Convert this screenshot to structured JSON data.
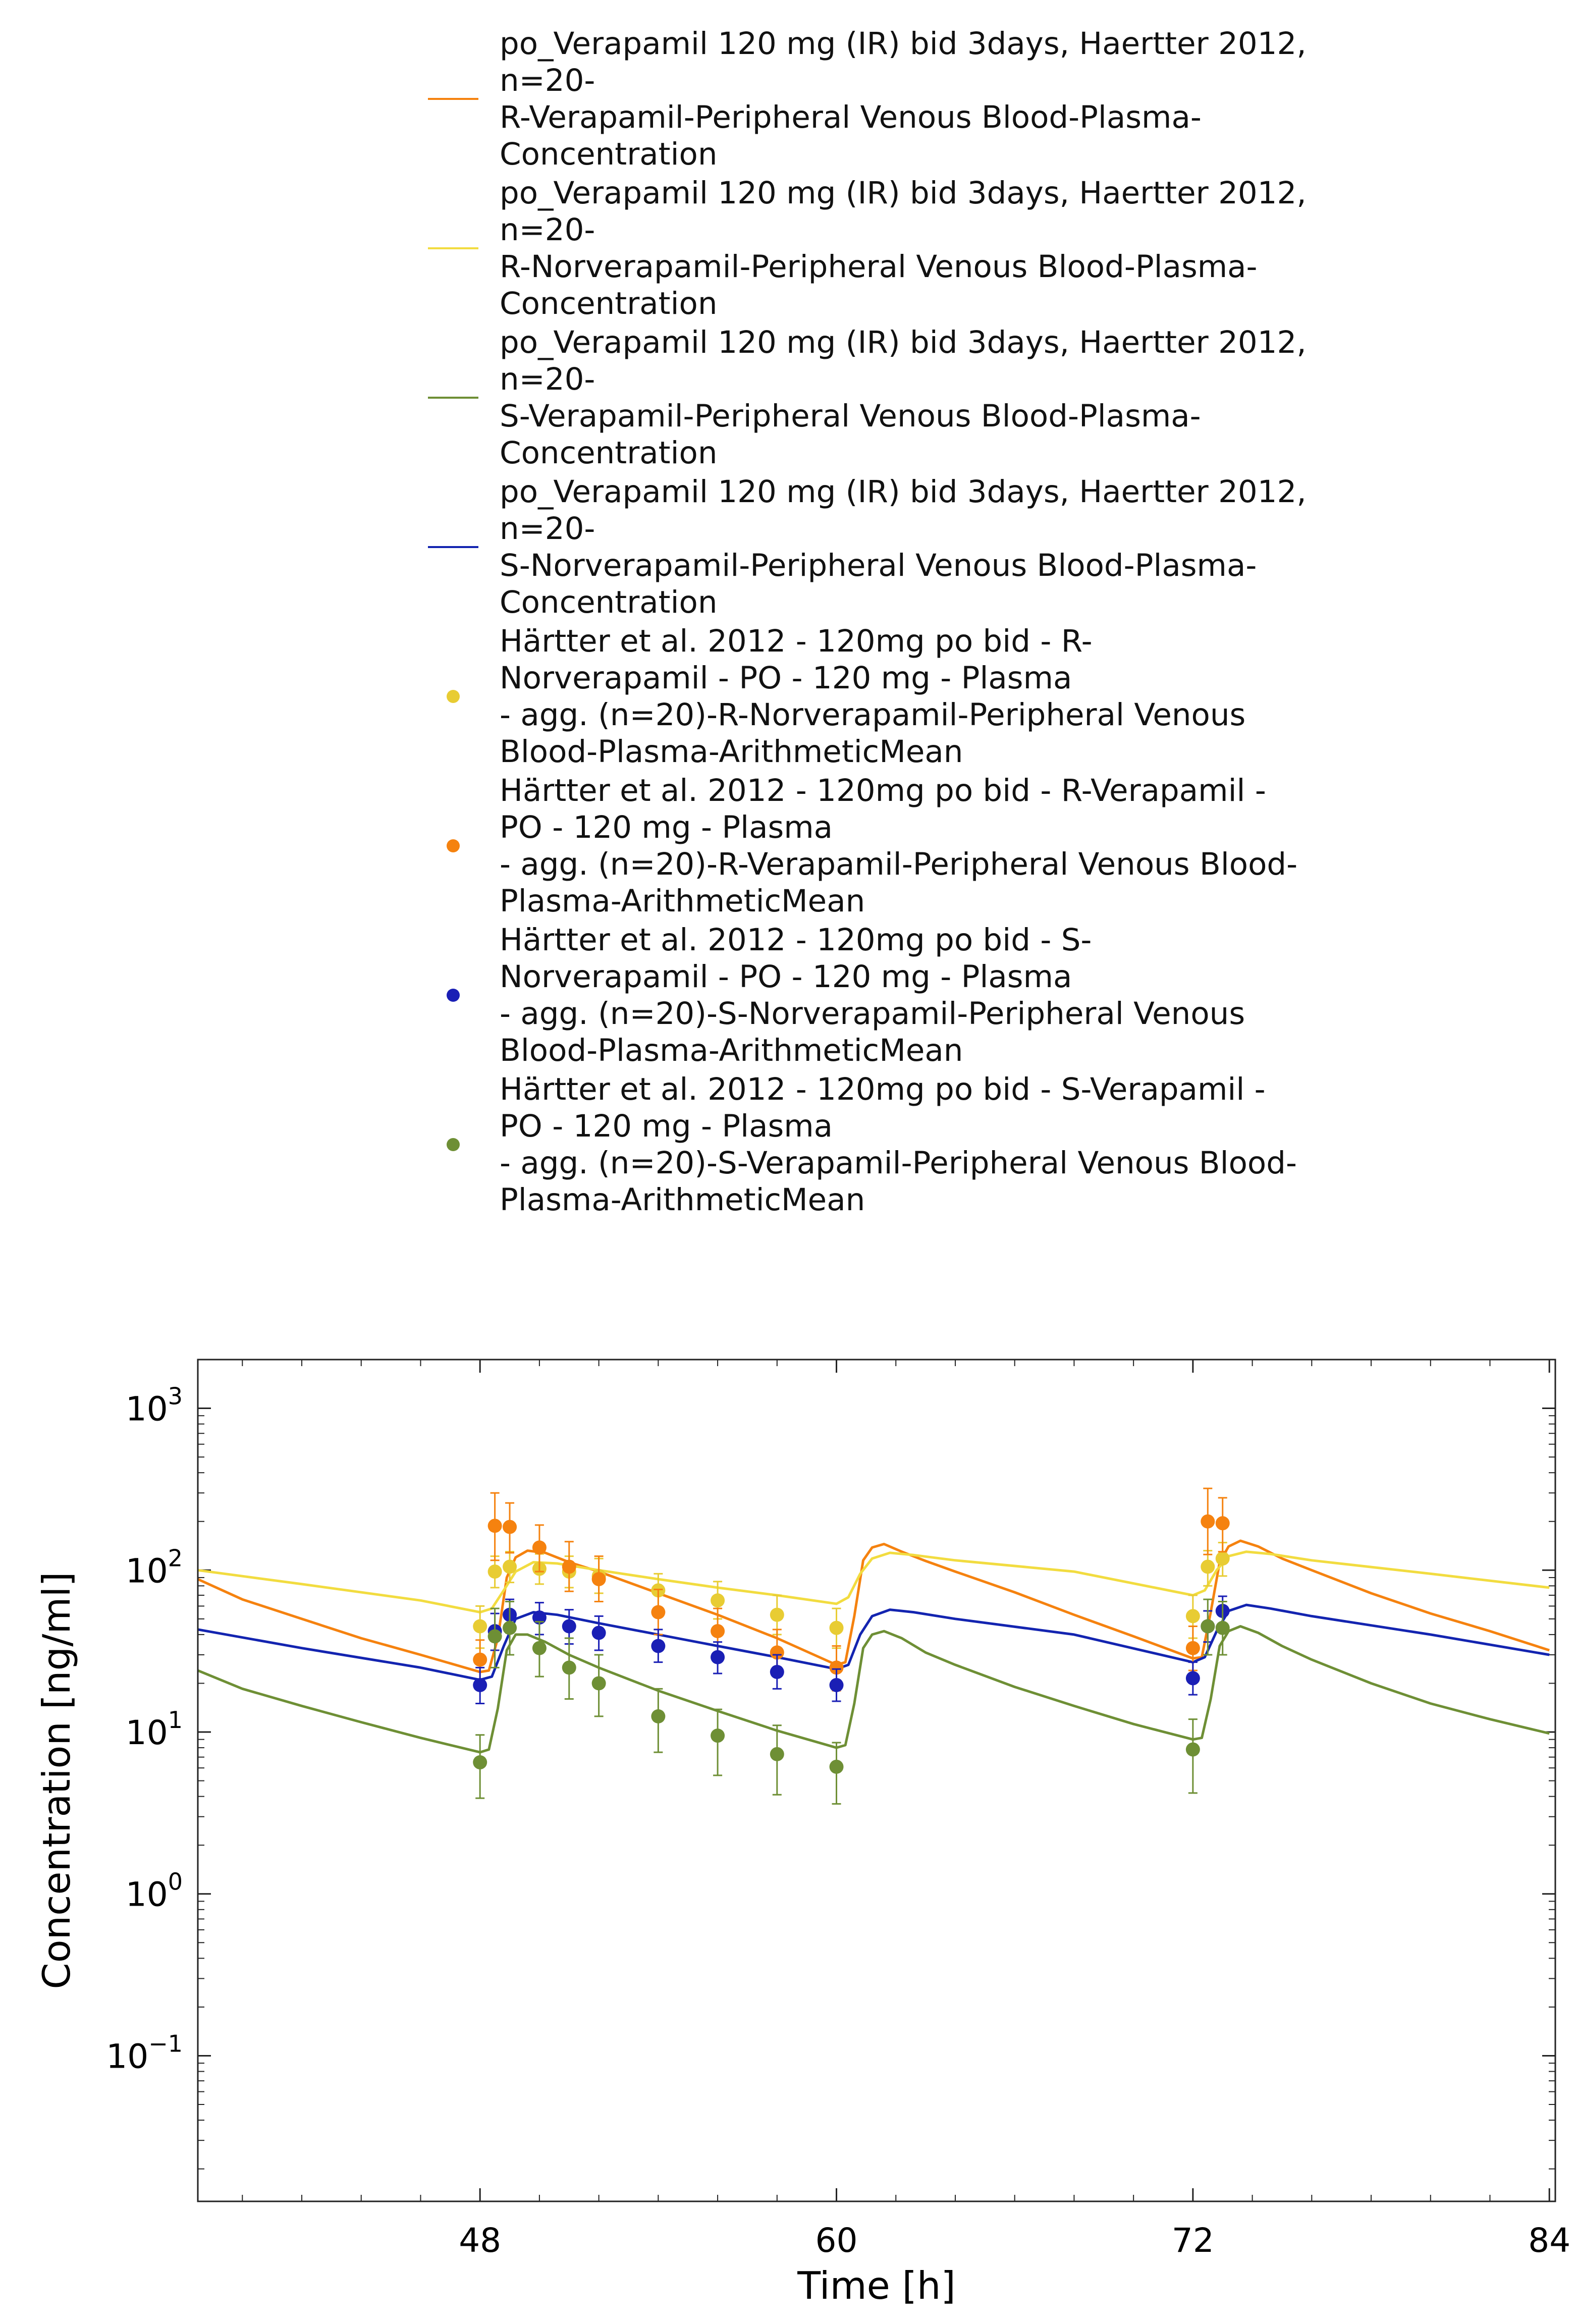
{
  "chart_data": {
    "type": "line",
    "title": "",
    "xlabel": "Time [h]",
    "ylabel": "Concentration [ng/ml]",
    "xlim": [
      38.5,
      84.2
    ],
    "ylim": [
      0.0126,
      2000
    ],
    "yscale": "log",
    "x_ticks": [
      48,
      60,
      72,
      84
    ],
    "x_tick_labels": [
      "48",
      "60",
      "72",
      "84"
    ],
    "y_ticks": [
      0.1,
      1,
      10,
      100,
      1000
    ],
    "y_tick_labels": [
      {
        "base": "10",
        "exp": "−1"
      },
      {
        "base": "10",
        "exp": "0"
      },
      {
        "base": "10",
        "exp": "1"
      },
      {
        "base": "10",
        "exp": "2"
      },
      {
        "base": "10",
        "exp": "3"
      }
    ],
    "grid": false,
    "legend_placement": "above",
    "simulations": [
      {
        "name": "po_Verapamil 120 mg (IR) bid 3days, Haertter 2012,\nn=20-\nR-Verapamil-Peripheral Venous Blood-Plasma-\nConcentration",
        "color": "#f5820f",
        "x": [
          38.5,
          40,
          42,
          44,
          46,
          48,
          48.3,
          48.6,
          48.9,
          49.2,
          49.6,
          50.2,
          51,
          52,
          54,
          56,
          58,
          60,
          60.3,
          60.6,
          60.9,
          61.2,
          61.6,
          62.2,
          63,
          64,
          66,
          68,
          70,
          72,
          72.3,
          72.6,
          72.9,
          73.2,
          73.6,
          74.2,
          75,
          76,
          78,
          80,
          82,
          84
        ],
        "y": [
          88,
          66,
          50,
          38,
          30,
          23.5,
          24,
          38,
          90,
          120,
          132,
          128,
          112,
          98,
          72,
          53,
          38,
          26,
          27,
          52,
          115,
          138,
          145,
          130,
          114,
          98,
          73,
          53,
          39,
          28.5,
          29,
          55,
          112,
          140,
          152,
          140,
          118,
          100,
          72,
          54,
          42,
          32
        ]
      },
      {
        "name": "po_Verapamil 120 mg (IR) bid 3days, Haertter 2012,\nn=20-\nR-Norverapamil-Peripheral Venous Blood-Plasma-\nConcentration",
        "color": "#f2dc40",
        "x": [
          38.5,
          42,
          46,
          48,
          48.4,
          48.8,
          49.2,
          49.8,
          50.6,
          52,
          54,
          56,
          58,
          60,
          60.4,
          60.8,
          61.2,
          61.8,
          62.6,
          64,
          68,
          72,
          72.4,
          72.8,
          73.2,
          73.8,
          74.6,
          76,
          80,
          84
        ],
        "y": [
          100,
          82,
          65,
          55,
          58,
          75,
          98,
          112,
          110,
          100,
          88,
          78,
          70,
          62,
          68,
          95,
          118,
          128,
          124,
          115,
          98,
          70,
          75,
          100,
          122,
          130,
          126,
          115,
          95,
          78
        ]
      },
      {
        "name": "po_Verapamil 120 mg (IR) bid 3days, Haertter 2012,\nn=20-\nS-Verapamil-Peripheral Venous Blood-Plasma-\nConcentration",
        "color": "#6e8f35",
        "x": [
          38.5,
          40,
          42,
          44,
          46,
          48,
          48.3,
          48.6,
          48.9,
          49.2,
          49.6,
          50.2,
          51,
          52,
          54,
          56,
          58,
          60,
          60.3,
          60.6,
          60.9,
          61.2,
          61.6,
          62.2,
          63,
          64,
          66,
          68,
          70,
          72,
          72.3,
          72.6,
          72.9,
          73.2,
          73.6,
          74.2,
          75,
          76,
          78,
          80,
          82,
          84
        ],
        "y": [
          24,
          18.5,
          14.5,
          11.5,
          9.2,
          7.5,
          7.8,
          14,
          32,
          40,
          40,
          36,
          30,
          25,
          18,
          13.5,
          10.2,
          8,
          8.3,
          15,
          33,
          40,
          42,
          38,
          31,
          26,
          19,
          14.5,
          11.2,
          9,
          9.2,
          16,
          34,
          42,
          45,
          41,
          34,
          28,
          20,
          15,
          12,
          9.8
        ]
      },
      {
        "name": "po_Verapamil 120 mg (IR) bid 3days, Haertter 2012,\nn=20-\nS-Norverapamil-Peripheral Venous Blood-Plasma-\nConcentration",
        "color": "#1324b0",
        "x": [
          38.5,
          42,
          46,
          48,
          48.4,
          48.8,
          49.2,
          49.8,
          50.6,
          52,
          54,
          56,
          58,
          60,
          60.4,
          60.8,
          61.2,
          61.8,
          62.6,
          64,
          68,
          72,
          72.4,
          72.8,
          73.2,
          73.8,
          74.6,
          76,
          80,
          84
        ],
        "y": [
          43,
          33,
          25,
          21,
          22,
          34,
          50,
          55,
          53,
          47,
          40,
          34,
          29,
          24.5,
          26,
          40,
          52,
          57,
          55,
          50,
          40,
          27,
          29,
          42,
          56,
          61,
          58,
          52,
          40,
          30
        ]
      }
    ],
    "observations": [
      {
        "name": "Härtter et al. 2012 - 120mg po bid - R-\nNorverapamil - PO - 120 mg - Plasma\n- agg. (n=20)-R-Norverapamil-Peripheral Venous\nBlood-Plasma-ArithmeticMean",
        "color": "#e8cc33",
        "x": [
          48,
          48.5,
          49,
          50,
          51,
          52,
          54,
          56,
          58,
          60,
          72,
          72.5,
          73
        ],
        "y": [
          45,
          98,
          105,
          102,
          98,
          92,
          75,
          65,
          53,
          44,
          52,
          105,
          118
        ],
        "err_low": [
          33,
          78,
          84,
          82,
          78,
          72,
          58,
          50,
          40,
          33,
          38,
          80,
          92
        ],
        "err_high": [
          60,
          122,
          130,
          126,
          122,
          118,
          95,
          85,
          70,
          58,
          70,
          132,
          148
        ]
      },
      {
        "name": "Härtter et al. 2012 - 120mg po bid - R-Verapamil -\nPO - 120 mg - Plasma\n- agg. (n=20)-R-Verapamil-Peripheral Venous Blood-\nPlasma-ArithmeticMean",
        "color": "#f5820f",
        "x": [
          48,
          48.5,
          49,
          50,
          51,
          52,
          54,
          56,
          58,
          60,
          72,
          72.5,
          73
        ],
        "y": [
          28,
          188,
          185,
          138,
          105,
          88,
          55,
          42,
          31,
          25,
          33,
          200,
          195
        ],
        "err_low": [
          20,
          115,
          128,
          98,
          74,
          64,
          40,
          31,
          23,
          18,
          24,
          125,
          130
        ],
        "err_high": [
          37,
          300,
          260,
          190,
          150,
          122,
          76,
          58,
          43,
          34,
          45,
          320,
          280
        ]
      },
      {
        "name": "Härtter et al. 2012 - 120mg po bid - S-\nNorverapamil - PO - 120 mg - Plasma\n- agg. (n=20)-S-Norverapamil-Peripheral Venous\nBlood-Plasma-ArithmeticMean",
        "color": "#1a1fb5",
        "x": [
          48,
          48.5,
          49,
          50,
          51,
          52,
          54,
          56,
          58,
          60,
          72,
          72.5,
          73
        ],
        "y": [
          19.5,
          42,
          53,
          51,
          45,
          41,
          34,
          29,
          23.5,
          19.5,
          21.5,
          45,
          56
        ],
        "err_low": [
          15,
          32,
          41,
          40,
          35,
          32,
          27,
          23,
          18.5,
          15.5,
          17,
          36,
          45
        ],
        "err_high": [
          25,
          54,
          66,
          63,
          57,
          52,
          43,
          36,
          30,
          24.5,
          27,
          56,
          69
        ]
      },
      {
        "name": "Härtter et al. 2012 - 120mg po bid - S-Verapamil -\nPO - 120 mg - Plasma\n- agg. (n=20)-S-Verapamil-Peripheral Venous Blood-\nPlasma-ArithmeticMean",
        "color": "#6e8f35",
        "x": [
          48,
          48.5,
          49,
          50,
          51,
          52,
          54,
          56,
          58,
          60,
          72,
          72.5,
          73
        ],
        "y": [
          6.5,
          39,
          44,
          33,
          25,
          20,
          12.5,
          9.5,
          7.3,
          6.1,
          7.8,
          45,
          44
        ],
        "err_low": [
          3.9,
          25,
          30,
          22,
          16,
          12.5,
          7.5,
          5.4,
          4.1,
          3.6,
          4.2,
          30,
          30
        ],
        "err_high": [
          9.6,
          58,
          64,
          48,
          38,
          30,
          18.5,
          13.8,
          11,
          8.6,
          12,
          66,
          64
        ]
      }
    ]
  }
}
